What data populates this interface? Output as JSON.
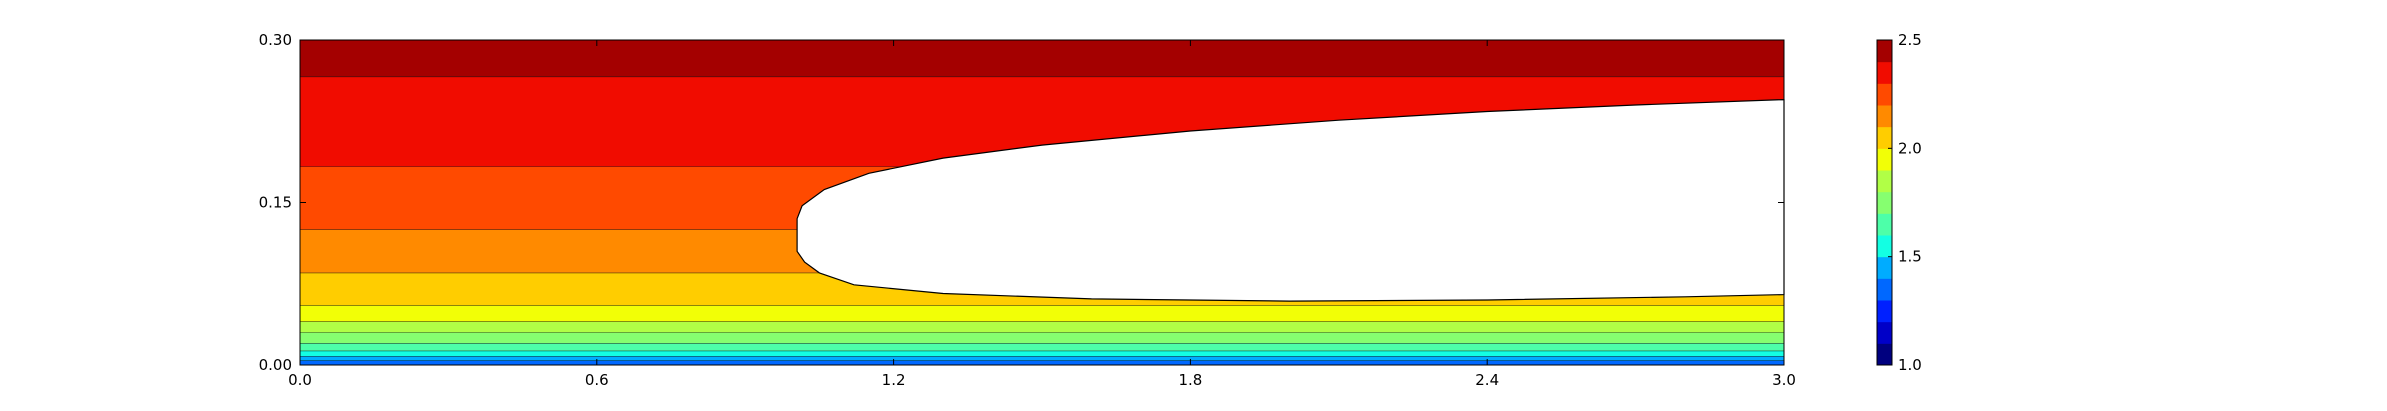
{
  "chart_data": {
    "type": "contour",
    "title": "",
    "xlabel": "",
    "ylabel": "",
    "xlim": [
      0.0,
      3.0
    ],
    "ylim": [
      0.0,
      0.3
    ],
    "x_ticks": [
      "0.0",
      "0.6",
      "1.2",
      "1.8",
      "2.4",
      "3.0"
    ],
    "y_ticks": [
      "0.00",
      "0.15",
      "0.30"
    ],
    "colorbar": {
      "range": [
        1.0,
        2.5
      ],
      "tick_labels": [
        "1.0",
        "1.5",
        "2.0",
        "2.5"
      ],
      "levels": [
        1.0,
        1.1,
        1.2,
        1.3,
        1.4,
        1.5,
        1.6,
        1.7,
        1.8,
        1.9,
        2.0,
        2.1,
        2.2,
        2.3,
        2.4,
        2.5
      ],
      "colors": [
        "#00007f",
        "#0000c8",
        "#0020ff",
        "#0068ff",
        "#00acff",
        "#13ffe3",
        "#4dffa9",
        "#86ff70",
        "#b1ff46",
        "#f2ff06",
        "#ffcd00",
        "#ff8a00",
        "#ff4a00",
        "#f10c00",
        "#a40000"
      ]
    },
    "left_boundary_bands": [
      {
        "y_from": 0.0,
        "y_to": 0.004,
        "color": "#0068ff"
      },
      {
        "y_from": 0.004,
        "y_to": 0.008,
        "color": "#00acff"
      },
      {
        "y_from": 0.008,
        "y_to": 0.013,
        "color": "#13ffe3"
      },
      {
        "y_from": 0.013,
        "y_to": 0.02,
        "color": "#4dffa9"
      },
      {
        "y_from": 0.02,
        "y_to": 0.03,
        "color": "#86ff70"
      },
      {
        "y_from": 0.03,
        "y_to": 0.04,
        "color": "#b1ff46"
      },
      {
        "y_from": 0.04,
        "y_to": 0.055,
        "color": "#f2ff06"
      },
      {
        "y_from": 0.055,
        "y_to": 0.085,
        "color": "#ffcd00"
      },
      {
        "y_from": 0.085,
        "y_to": 0.125,
        "color": "#ff8a00"
      },
      {
        "y_from": 0.125,
        "y_to": 0.183,
        "color": "#ff4a00"
      },
      {
        "y_from": 0.183,
        "y_to": 0.266,
        "color": "#f10c00"
      },
      {
        "y_from": 0.266,
        "y_to": 0.3,
        "color": "#a40000"
      }
    ],
    "void_region": {
      "description_of_shape": "blank (white) region",
      "boundary_points": [
        [
          3.0,
          0.245
        ],
        [
          2.7,
          0.24
        ],
        [
          2.4,
          0.234
        ],
        [
          2.1,
          0.226
        ],
        [
          1.8,
          0.216
        ],
        [
          1.5,
          0.203
        ],
        [
          1.3,
          0.191
        ],
        [
          1.15,
          0.177
        ],
        [
          1.06,
          0.162
        ],
        [
          1.015,
          0.147
        ],
        [
          1.005,
          0.135
        ],
        [
          1.005,
          0.105
        ],
        [
          1.02,
          0.095
        ],
        [
          1.05,
          0.085
        ],
        [
          1.12,
          0.074
        ],
        [
          1.3,
          0.066
        ],
        [
          1.6,
          0.061
        ],
        [
          2.0,
          0.059
        ],
        [
          2.4,
          0.06
        ],
        [
          2.8,
          0.063
        ],
        [
          3.0,
          0.065
        ]
      ]
    }
  }
}
